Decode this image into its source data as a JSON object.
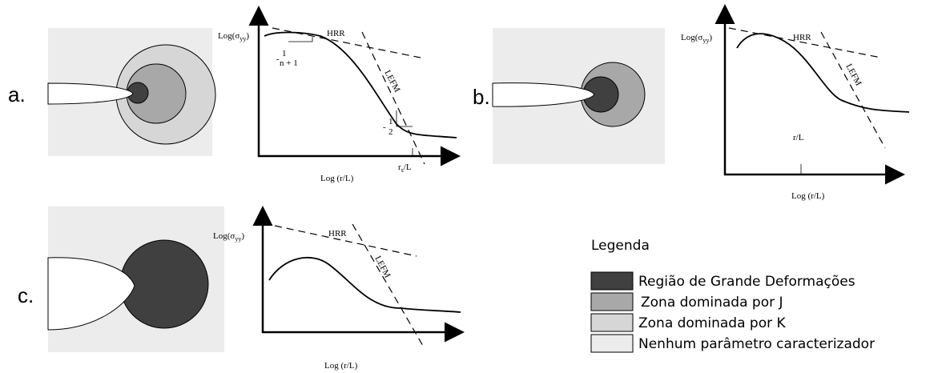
{
  "panels": [
    {
      "label": "a.",
      "y_label": {
        "base": "Log(σ",
        "sub": "yy",
        "close": ")"
      },
      "x_label": "Log (r/L)",
      "hrr": "HRR",
      "lefm": "LEFM",
      "slope_hrr": {
        "sign": "-",
        "num": "1",
        "den": "n + 1"
      },
      "slope_lefm": {
        "sign": "-",
        "num": "1",
        "den": "2"
      },
      "x_tick": {
        "base": "r",
        "sub": "s",
        "rest": "/L"
      }
    },
    {
      "label": "b.",
      "y_label": {
        "base": "Log(σ",
        "sub": "yy",
        "close": ")"
      },
      "x_label": "Log (r/L)",
      "hrr": "HRR",
      "lefm": "LEFM",
      "x_tick": "r/L"
    },
    {
      "label": "c.",
      "y_label": {
        "base": "Log(σ",
        "sub": "yy",
        "close": ")"
      },
      "x_label": "Log (r/L)",
      "hrr": "HRR",
      "lefm": "LEFM"
    }
  ],
  "legend": {
    "title": "Legenda",
    "items": [
      "Região de Grande Deformações",
      "Zona dominada por J",
      "Zona dominada por K",
      "Nenhum parâmetro caracterizador"
    ]
  }
}
